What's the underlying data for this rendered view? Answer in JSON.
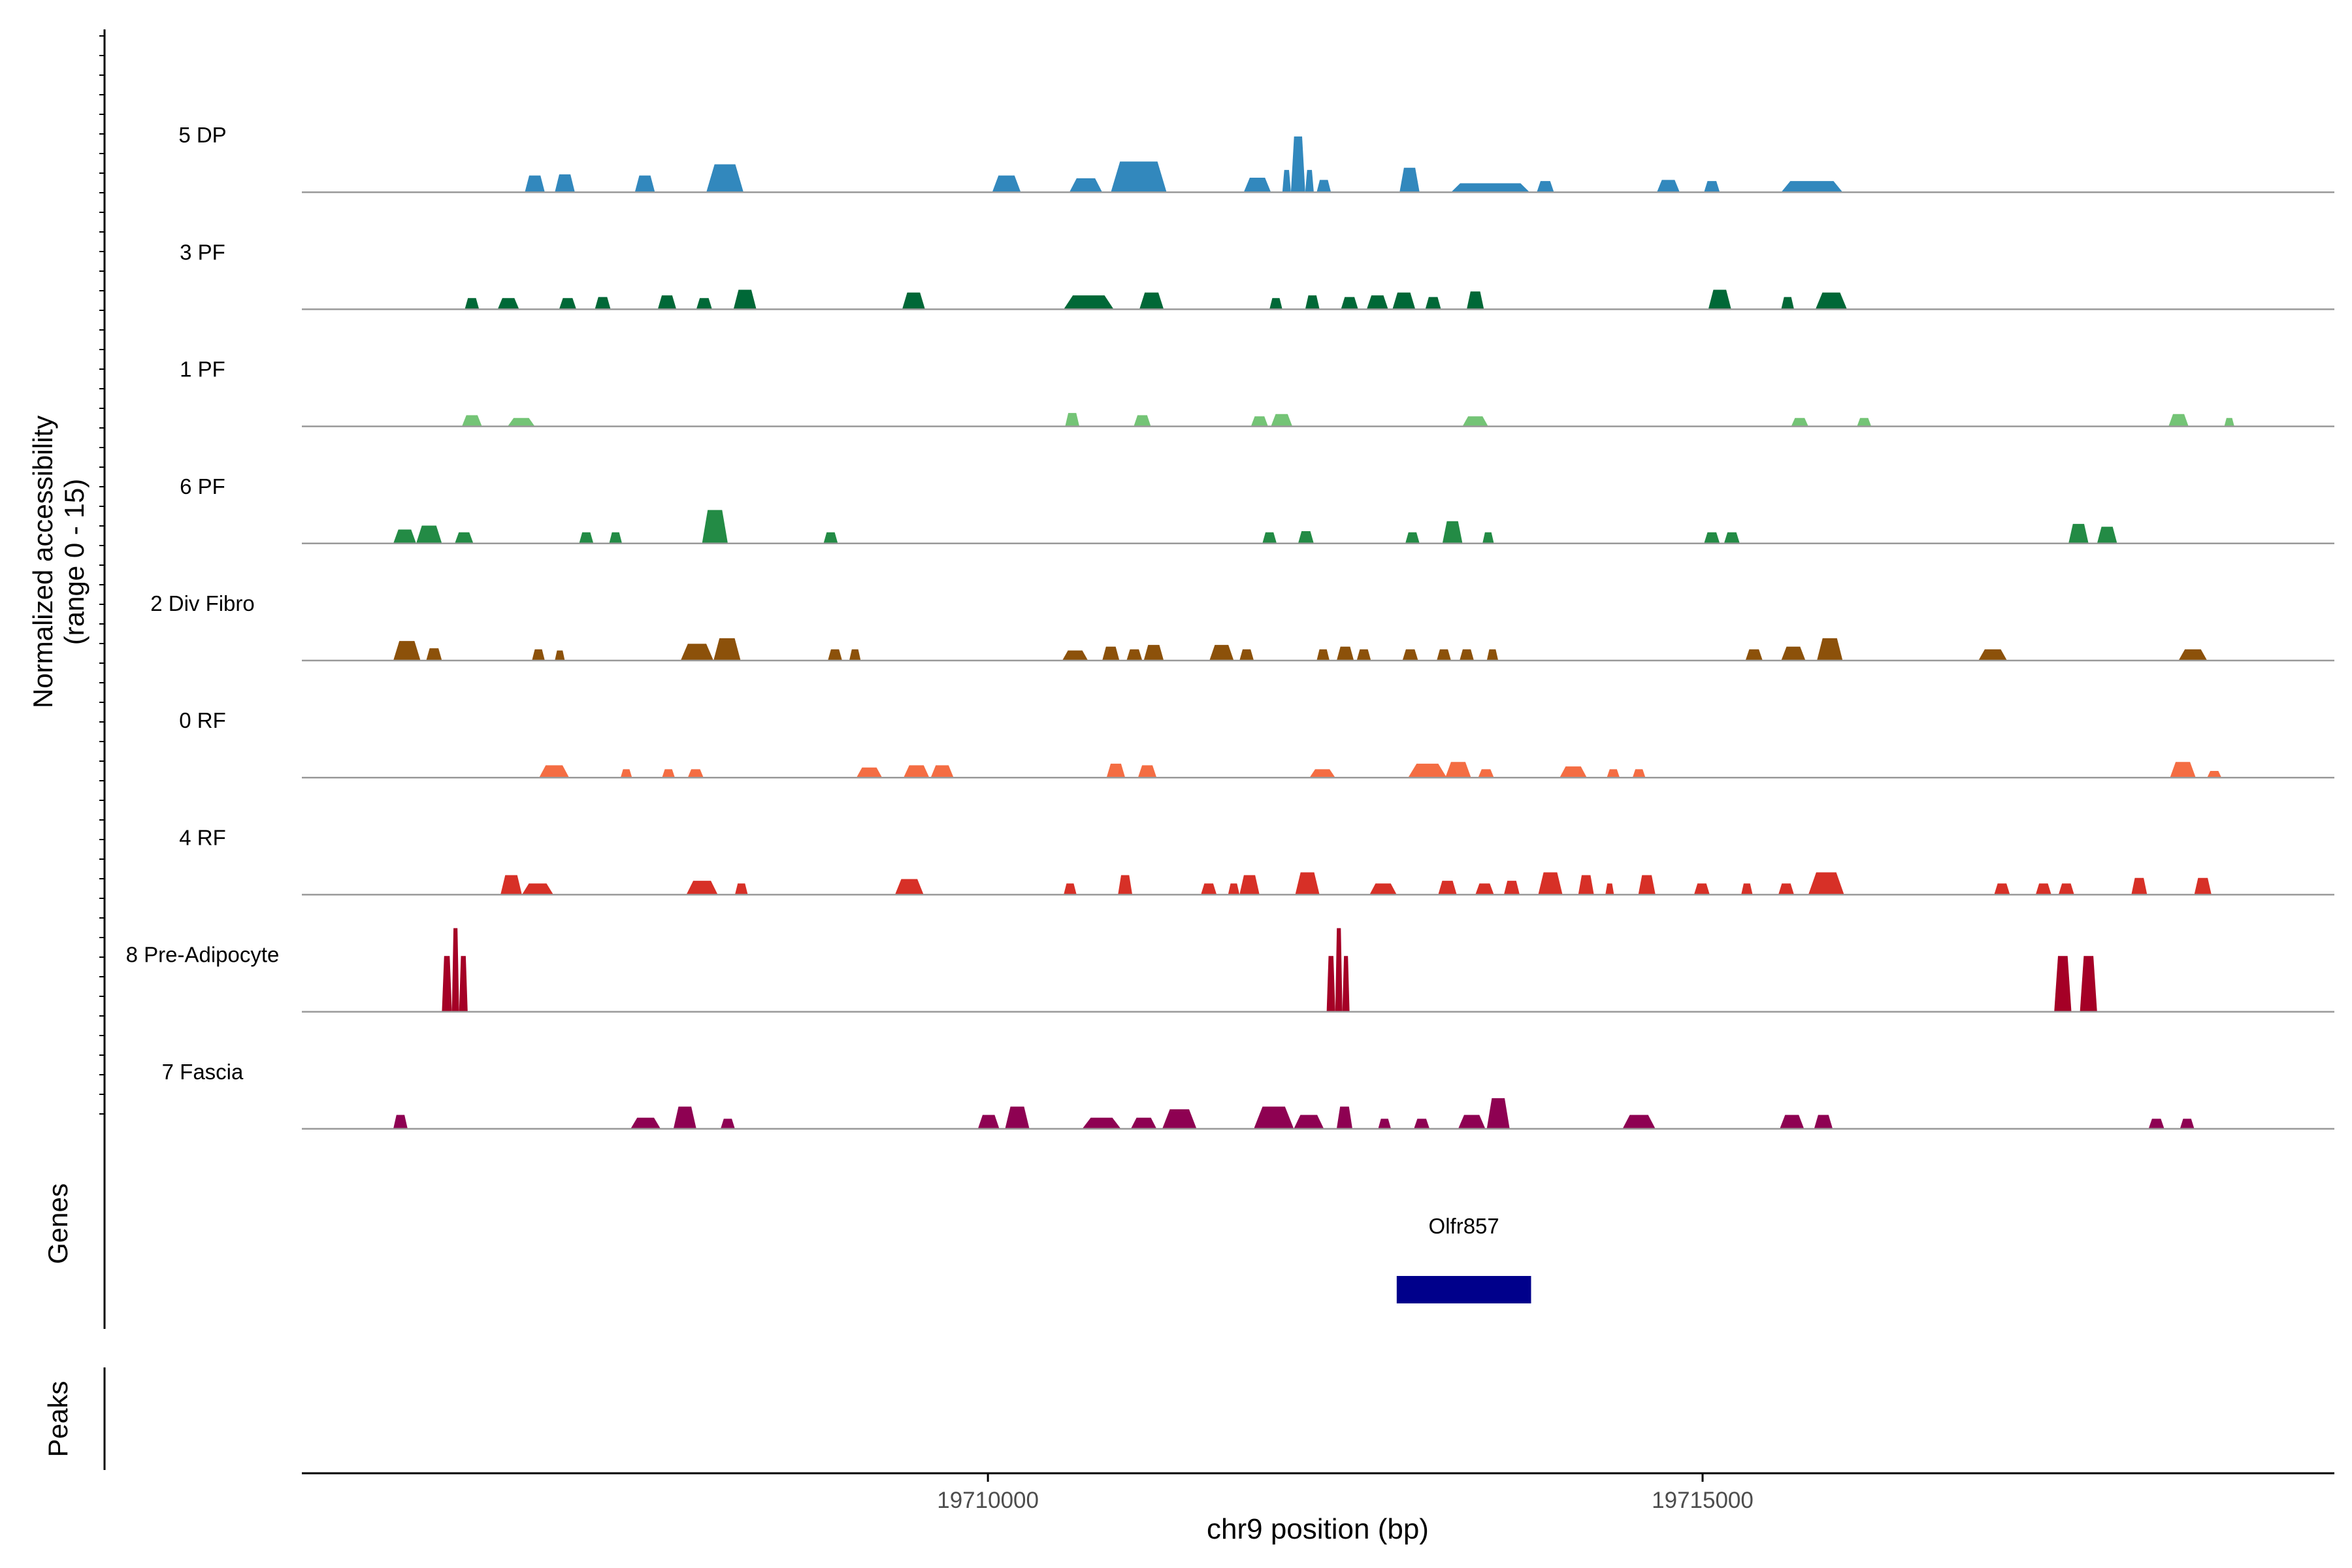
{
  "chart_data": {
    "type": "area",
    "title": "",
    "ylabel_line1": "Normalized accessibility",
    "ylabel_line2": "(range 0 - 15)",
    "xlabel": "chr9 position (bp)",
    "xlim": [
      19705200,
      19719420
    ],
    "ylim": [
      0,
      15
    ],
    "xticks": [
      {
        "value": 19710000,
        "label": "19710000"
      },
      {
        "value": 19715000,
        "label": "19715000"
      }
    ],
    "panel_labels": {
      "genes": "Genes",
      "peaks": "Peaks"
    },
    "genes": [
      {
        "name": "Olfr857",
        "start": 19712860,
        "end": 19713800,
        "color": "#00008B"
      }
    ],
    "series": [
      {
        "name": "5 DP",
        "color": "#3288BD",
        "peaks": [
          [
            19706760,
            19706900,
            3.0
          ],
          [
            19706970,
            19707110,
            3.2
          ],
          [
            19707530,
            19707670,
            3.0
          ],
          [
            19708030,
            19708290,
            5.0
          ],
          [
            19710030,
            19710230,
            3.0
          ],
          [
            19710570,
            19710800,
            2.5
          ],
          [
            19710860,
            19711250,
            5.5
          ],
          [
            19711790,
            19711980,
            2.6
          ],
          [
            19712060,
            19712120,
            4.0
          ],
          [
            19712120,
            19712220,
            10.0
          ],
          [
            19712220,
            19712280,
            4.0
          ],
          [
            19712300,
            19712400,
            2.2
          ],
          [
            19712880,
            19713020,
            4.4
          ],
          [
            19713240,
            19713790,
            1.6
          ],
          [
            19713840,
            19713960,
            2.0
          ],
          [
            19714680,
            19714840,
            2.2
          ],
          [
            19715010,
            19715120,
            2.0
          ],
          [
            19715550,
            19715980,
            2.0
          ]
        ]
      },
      {
        "name": "3 PF",
        "color": "#006837",
        "peaks": [
          [
            19706340,
            19706440,
            2.0
          ],
          [
            19706570,
            19706720,
            2.0
          ],
          [
            19707000,
            19707120,
            2.0
          ],
          [
            19707250,
            19707360,
            2.2
          ],
          [
            19707690,
            19707820,
            2.5
          ],
          [
            19707960,
            19708070,
            2.0
          ],
          [
            19708220,
            19708380,
            3.5
          ],
          [
            19709400,
            19709560,
            3.0
          ],
          [
            19710530,
            19710880,
            2.5
          ],
          [
            19711060,
            19711230,
            3.0
          ],
          [
            19711970,
            19712060,
            2.0
          ],
          [
            19712220,
            19712320,
            2.5
          ],
          [
            19712470,
            19712590,
            2.2
          ],
          [
            19712650,
            19712800,
            2.5
          ],
          [
            19712830,
            19712990,
            3.0
          ],
          [
            19713060,
            19713170,
            2.2
          ],
          [
            19713350,
            19713470,
            3.2
          ],
          [
            19715040,
            19715200,
            3.5
          ],
          [
            19715550,
            19715640,
            2.2
          ],
          [
            19715790,
            19716010,
            3.0
          ]
        ]
      },
      {
        "name": "1 PF",
        "color": "#74C476",
        "peaks": [
          [
            19706320,
            19706460,
            2.0
          ],
          [
            19706640,
            19706830,
            1.5
          ],
          [
            19710540,
            19710640,
            2.4
          ],
          [
            19711020,
            19711140,
            2.0
          ],
          [
            19711840,
            19711960,
            1.8
          ],
          [
            19711980,
            19712130,
            2.2
          ],
          [
            19713320,
            19713500,
            1.8
          ],
          [
            19715620,
            19715740,
            1.5
          ],
          [
            19716080,
            19716180,
            1.5
          ],
          [
            19718260,
            19718400,
            2.2
          ],
          [
            19718650,
            19718720,
            1.5
          ]
        ]
      },
      {
        "name": "6 PF",
        "color": "#238B45",
        "peaks": [
          [
            19705840,
            19706000,
            2.5
          ],
          [
            19706000,
            19706180,
            3.2
          ],
          [
            19706270,
            19706400,
            2.0
          ],
          [
            19707140,
            19707240,
            2.0
          ],
          [
            19707350,
            19707440,
            2.0
          ],
          [
            19708000,
            19708180,
            6.0
          ],
          [
            19708850,
            19708950,
            2.0
          ],
          [
            19711920,
            19712020,
            2.0
          ],
          [
            19712170,
            19712280,
            2.2
          ],
          [
            19712920,
            19713020,
            2.0
          ],
          [
            19713180,
            19713320,
            4.0
          ],
          [
            19713460,
            19713540,
            2.0
          ],
          [
            19715010,
            19715120,
            2.0
          ],
          [
            19715150,
            19715260,
            2.0
          ],
          [
            19717560,
            19717700,
            3.5
          ],
          [
            19717760,
            19717900,
            3.0
          ]
        ]
      },
      {
        "name": "2 Div Fibro",
        "color": "#8C510A",
        "peaks": [
          [
            19705840,
            19706030,
            3.5
          ],
          [
            19706070,
            19706180,
            2.2
          ],
          [
            19706810,
            19706900,
            2.0
          ],
          [
            19706970,
            19707040,
            1.8
          ],
          [
            19707850,
            19708080,
            3.0
          ],
          [
            19708080,
            19708270,
            4.0
          ],
          [
            19708880,
            19708980,
            2.0
          ],
          [
            19709030,
            19709110,
            2.0
          ],
          [
            19710520,
            19710700,
            1.8
          ],
          [
            19710800,
            19710920,
            2.5
          ],
          [
            19710970,
            19711080,
            2.0
          ],
          [
            19711090,
            19711230,
            2.8
          ],
          [
            19711550,
            19711720,
            2.8
          ],
          [
            19711760,
            19711860,
            2.0
          ],
          [
            19712300,
            19712390,
            2.0
          ],
          [
            19712440,
            19712560,
            2.5
          ],
          [
            19712580,
            19712680,
            2.0
          ],
          [
            19712900,
            19713010,
            2.0
          ],
          [
            19713140,
            19713240,
            2.0
          ],
          [
            19713300,
            19713400,
            2.0
          ],
          [
            19713490,
            19713570,
            2.0
          ],
          [
            19715300,
            19715420,
            2.0
          ],
          [
            19715550,
            19715720,
            2.5
          ],
          [
            19715800,
            19715980,
            4.0
          ],
          [
            19716930,
            19717130,
            2.0
          ],
          [
            19718330,
            19718530,
            2.0
          ]
        ]
      },
      {
        "name": "0 RF",
        "color": "#F46D43",
        "peaks": [
          [
            19706860,
            19707070,
            2.2
          ],
          [
            19707430,
            19707510,
            1.5
          ],
          [
            19707720,
            19707810,
            1.5
          ],
          [
            19707900,
            19708010,
            1.5
          ],
          [
            19709080,
            19709260,
            1.8
          ],
          [
            19709410,
            19709590,
            2.2
          ],
          [
            19709600,
            19709760,
            2.2
          ],
          [
            19710830,
            19710960,
            2.5
          ],
          [
            19711050,
            19711180,
            2.2
          ],
          [
            19712250,
            19712430,
            1.5
          ],
          [
            19712940,
            19713210,
            2.5
          ],
          [
            19713200,
            19713380,
            2.8
          ],
          [
            19713430,
            19713540,
            1.5
          ],
          [
            19714000,
            19714190,
            2.0
          ],
          [
            19714330,
            19714420,
            1.5
          ],
          [
            19714510,
            19714600,
            1.5
          ],
          [
            19718270,
            19718450,
            2.8
          ],
          [
            19718530,
            19718630,
            1.2
          ]
        ]
      },
      {
        "name": "4 RF",
        "color": "#D73027",
        "peaks": [
          [
            19706590,
            19706740,
            3.5
          ],
          [
            19706740,
            19706960,
            2.0
          ],
          [
            19707890,
            19708110,
            2.5
          ],
          [
            19708230,
            19708320,
            2.0
          ],
          [
            19709350,
            19709550,
            2.8
          ],
          [
            19710530,
            19710620,
            2.0
          ],
          [
            19710910,
            19711010,
            3.5
          ],
          [
            19711490,
            19711600,
            2.0
          ],
          [
            19711680,
            19711760,
            2.0
          ],
          [
            19711760,
            19711900,
            3.5
          ],
          [
            19712150,
            19712320,
            4.0
          ],
          [
            19712670,
            19712860,
            2.0
          ],
          [
            19713150,
            19713280,
            2.5
          ],
          [
            19713410,
            19713540,
            2.0
          ],
          [
            19713610,
            19713720,
            2.5
          ],
          [
            19713850,
            19714020,
            4.0
          ],
          [
            19714130,
            19714240,
            3.5
          ],
          [
            19714320,
            19714380,
            2.0
          ],
          [
            19714550,
            19714670,
            3.5
          ],
          [
            19714940,
            19715050,
            2.0
          ],
          [
            19715270,
            19715350,
            2.0
          ],
          [
            19715530,
            19715640,
            2.0
          ],
          [
            19715740,
            19715990,
            4.0
          ],
          [
            19717040,
            19717150,
            2.0
          ],
          [
            19717330,
            19717440,
            2.0
          ],
          [
            19717490,
            19717600,
            2.0
          ],
          [
            19718000,
            19718110,
            3.0
          ],
          [
            19718440,
            19718560,
            3.0
          ]
        ]
      },
      {
        "name": "8 Pre-Adipocyte",
        "color": "#A50026",
        "peaks": [
          [
            19706180,
            19706250,
            10.0
          ],
          [
            19706250,
            19706300,
            15.0
          ],
          [
            19706300,
            19706360,
            10.0
          ],
          [
            19712370,
            19712430,
            10.0
          ],
          [
            19712430,
            19712480,
            15.0
          ],
          [
            19712480,
            19712530,
            10.0
          ],
          [
            19717460,
            19717580,
            10.0
          ],
          [
            19717640,
            19717760,
            10.0
          ]
        ]
      },
      {
        "name": "7 Fascia",
        "color": "#8E0152",
        "peaks": [
          [
            19705840,
            19705940,
            2.5
          ],
          [
            19707500,
            19707710,
            2.0
          ],
          [
            19707800,
            19707960,
            4.0
          ],
          [
            19708130,
            19708230,
            1.8
          ],
          [
            19709930,
            19710080,
            2.5
          ],
          [
            19710120,
            19710290,
            4.0
          ],
          [
            19710660,
            19710930,
            2.0
          ],
          [
            19711000,
            19711180,
            2.0
          ],
          [
            19711220,
            19711460,
            3.5
          ],
          [
            19711860,
            19712140,
            4.0
          ],
          [
            19712140,
            19712350,
            2.5
          ],
          [
            19712440,
            19712550,
            4.0
          ],
          [
            19712730,
            19712820,
            1.8
          ],
          [
            19712980,
            19713090,
            1.8
          ],
          [
            19713290,
            19713480,
            2.5
          ],
          [
            19713490,
            19713650,
            5.5
          ],
          [
            19714440,
            19714670,
            2.5
          ],
          [
            19715540,
            19715710,
            2.5
          ],
          [
            19715780,
            19715910,
            2.5
          ],
          [
            19718120,
            19718230,
            1.8
          ],
          [
            19718340,
            19718440,
            1.8
          ]
        ]
      }
    ]
  }
}
